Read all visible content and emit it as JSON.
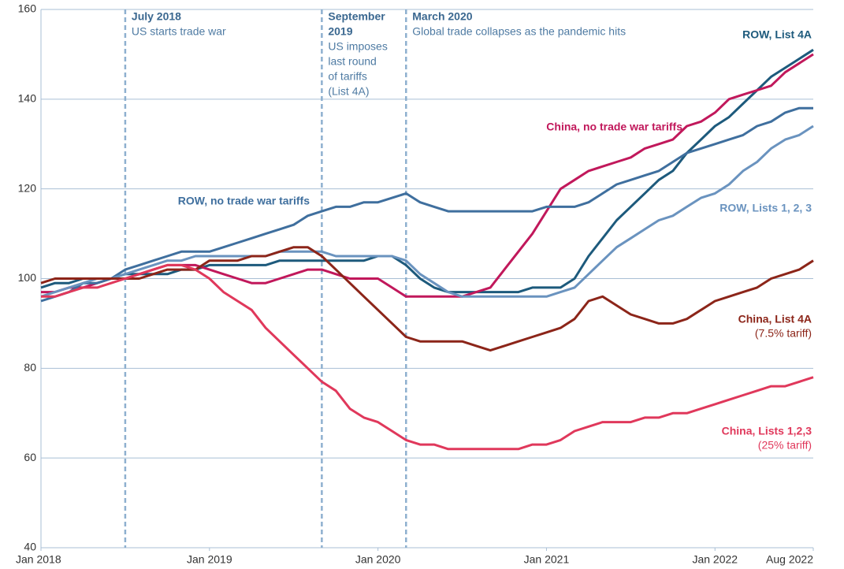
{
  "chart_data": {
    "type": "line",
    "x": [
      "2018-01",
      "2018-02",
      "2018-03",
      "2018-04",
      "2018-05",
      "2018-06",
      "2018-07",
      "2018-08",
      "2018-09",
      "2018-10",
      "2018-11",
      "2018-12",
      "2019-01",
      "2019-02",
      "2019-03",
      "2019-04",
      "2019-05",
      "2019-06",
      "2019-07",
      "2019-08",
      "2019-09",
      "2019-10",
      "2019-11",
      "2019-12",
      "2020-01",
      "2020-02",
      "2020-03",
      "2020-04",
      "2020-05",
      "2020-06",
      "2020-07",
      "2020-08",
      "2020-09",
      "2020-10",
      "2020-11",
      "2020-12",
      "2021-01",
      "2021-02",
      "2021-03",
      "2021-04",
      "2021-05",
      "2021-06",
      "2021-07",
      "2021-08",
      "2021-09",
      "2021-10",
      "2021-11",
      "2021-12",
      "2022-01",
      "2022-02",
      "2022-03",
      "2022-04",
      "2022-05",
      "2022-06",
      "2022-07",
      "2022-08"
    ],
    "xticks": [
      {
        "value": "2018-01",
        "label": "Jan 2018"
      },
      {
        "value": "2019-01",
        "label": "Jan 2019"
      },
      {
        "value": "2020-01",
        "label": "Jan 2020"
      },
      {
        "value": "2021-01",
        "label": "Jan 2021"
      },
      {
        "value": "2022-01",
        "label": "Jan 2022"
      },
      {
        "value": "2022-08",
        "label": "Aug 2022"
      }
    ],
    "ylim": [
      40,
      160
    ],
    "yticks": [
      40,
      60,
      80,
      100,
      120,
      140,
      160
    ],
    "grid": true,
    "series": [
      {
        "name": "ROW, List 4A",
        "color": "#1d5a7c",
        "values": [
          98,
          99,
          99,
          100,
          100,
          100,
          101,
          101,
          101,
          101,
          102,
          102,
          103,
          103,
          103,
          103,
          103,
          104,
          104,
          104,
          104,
          104,
          104,
          104,
          105,
          105,
          103,
          100,
          98,
          97,
          97,
          97,
          97,
          97,
          97,
          98,
          98,
          98,
          100,
          105,
          109,
          113,
          116,
          119,
          122,
          124,
          128,
          131,
          134,
          136,
          139,
          142,
          145,
          147,
          149,
          151
        ]
      },
      {
        "name": "China, no trade war tariffs",
        "color": "#c1185b",
        "values": [
          97,
          97,
          98,
          98,
          99,
          100,
          100,
          101,
          102,
          103,
          103,
          103,
          102,
          101,
          100,
          99,
          99,
          100,
          101,
          102,
          102,
          101,
          100,
          100,
          100,
          98,
          96,
          96,
          96,
          96,
          96,
          97,
          98,
          102,
          106,
          110,
          115,
          120,
          122,
          124,
          125,
          126,
          127,
          129,
          130,
          131,
          134,
          135,
          137,
          140,
          141,
          142,
          143,
          146,
          148,
          150
        ]
      },
      {
        "name": "ROW, no trade war tariffs",
        "color": "#3f6f9e",
        "values": [
          95,
          96,
          97,
          99,
          99,
          100,
          102,
          103,
          104,
          105,
          106,
          106,
          106,
          107,
          108,
          109,
          110,
          111,
          112,
          114,
          115,
          116,
          116,
          117,
          117,
          118,
          119,
          117,
          116,
          115,
          115,
          115,
          115,
          115,
          115,
          115,
          116,
          116,
          116,
          117,
          119,
          121,
          122,
          123,
          124,
          126,
          128,
          129,
          130,
          131,
          132,
          134,
          135,
          137,
          138,
          138
        ]
      },
      {
        "name": "ROW, Lists 1, 2, 3",
        "color": "#6a93bf",
        "values": [
          96,
          97,
          98,
          99,
          100,
          100,
          101,
          102,
          103,
          104,
          104,
          105,
          105,
          105,
          105,
          105,
          105,
          106,
          106,
          106,
          106,
          105,
          105,
          105,
          105,
          105,
          104,
          101,
          99,
          97,
          96,
          96,
          96,
          96,
          96,
          96,
          96,
          97,
          98,
          101,
          104,
          107,
          109,
          111,
          113,
          114,
          116,
          118,
          119,
          121,
          124,
          126,
          129,
          131,
          132,
          134
        ]
      },
      {
        "name": "China, List 4A",
        "note": "(7.5% tariff)",
        "color": "#8c2519",
        "values": [
          99,
          100,
          100,
          100,
          100,
          100,
          100,
          100,
          101,
          102,
          102,
          102,
          104,
          104,
          104,
          105,
          105,
          106,
          107,
          107,
          105,
          102,
          99,
          96,
          93,
          90,
          87,
          86,
          86,
          86,
          86,
          85,
          84,
          85,
          86,
          87,
          88,
          89,
          91,
          95,
          96,
          94,
          92,
          91,
          90,
          90,
          91,
          93,
          95,
          96,
          97,
          98,
          100,
          101,
          102,
          104
        ]
      },
      {
        "name": "China, Lists 1,2,3",
        "note": "(25% tariff)",
        "color": "#e0385b",
        "values": [
          96,
          96,
          97,
          98,
          98,
          99,
          100,
          101,
          102,
          103,
          103,
          102,
          100,
          97,
          95,
          93,
          89,
          86,
          83,
          80,
          77,
          75,
          71,
          69,
          68,
          66,
          64,
          63,
          63,
          62,
          62,
          62,
          62,
          62,
          62,
          63,
          63,
          64,
          66,
          67,
          68,
          68,
          68,
          69,
          69,
          70,
          70,
          71,
          72,
          73,
          74,
          75,
          76,
          76,
          77,
          78
        ]
      }
    ],
    "annotations": [
      {
        "x": "2018-07",
        "title": [
          "July 2018"
        ],
        "text": [
          "US starts trade war"
        ]
      },
      {
        "x": "2019-09",
        "title": [
          "September",
          "2019"
        ],
        "text": [
          "US imposes",
          "last round",
          "of tariffs",
          "(List 4A)"
        ]
      },
      {
        "x": "2020-03",
        "title": [
          "March 2020"
        ],
        "text": [
          "Global trade collapses as the pandemic hits"
        ]
      }
    ]
  }
}
